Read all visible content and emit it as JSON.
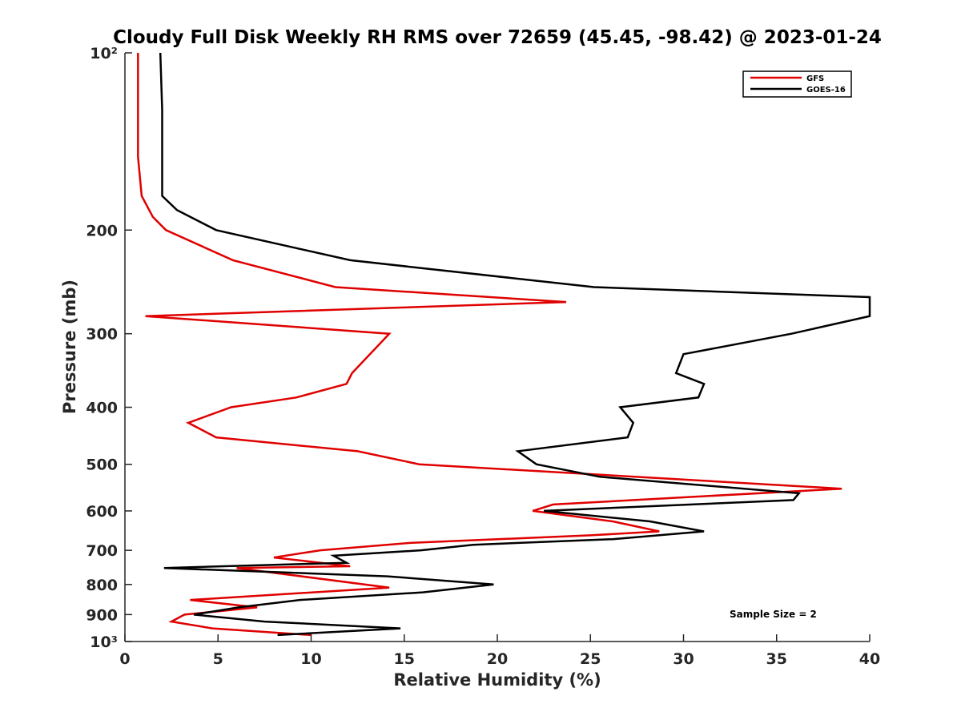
{
  "chart_data": {
    "type": "line",
    "title": "Cloudy Full Disk Weekly RH RMS over 72659 (45.45, -98.42) @ 2023-01-24",
    "xlabel": "Relative Humidity (%)",
    "ylabel": "Pressure (mb)",
    "xlim": [
      0,
      40
    ],
    "ylim": [
      100,
      1000
    ],
    "y_scale": "log",
    "y_reversed": true,
    "grid": false,
    "legend_position": "top-right",
    "x_ticks": [
      "0",
      "5",
      "10",
      "15",
      "20",
      "25",
      "30",
      "35",
      "40"
    ],
    "y_tick_values": [
      100,
      200,
      300,
      400,
      500,
      600,
      700,
      800,
      900,
      1000
    ],
    "y_tick_labels": [
      "10²",
      "200",
      "300",
      "400",
      "500",
      "600",
      "700",
      "800",
      "900",
      "10³"
    ],
    "annotation": "Sample Size = 2",
    "series": [
      {
        "name": "GFS",
        "color": "#e00000",
        "points": [
          [
            0.7,
            100
          ],
          [
            0.7,
            125
          ],
          [
            0.7,
            150
          ],
          [
            0.9,
            175
          ],
          [
            1.5,
            190
          ],
          [
            2.2,
            200
          ],
          [
            5.8,
            225
          ],
          [
            11.3,
            250
          ],
          [
            23.7,
            265
          ],
          [
            1.1,
            280
          ],
          [
            14.2,
            300
          ],
          [
            12.2,
            350
          ],
          [
            11.9,
            365
          ],
          [
            9.2,
            385
          ],
          [
            5.7,
            400
          ],
          [
            3.4,
            425
          ],
          [
            4.9,
            450
          ],
          [
            12.5,
            475
          ],
          [
            15.8,
            500
          ],
          [
            38.5,
            550
          ],
          [
            23.0,
            585
          ],
          [
            21.9,
            600
          ],
          [
            26.2,
            625
          ],
          [
            28.7,
            650
          ],
          [
            25.0,
            660
          ],
          [
            15.3,
            680
          ],
          [
            10.5,
            700
          ],
          [
            8.0,
            720
          ],
          [
            12.1,
            745
          ],
          [
            6.0,
            750
          ],
          [
            14.2,
            810
          ],
          [
            3.5,
            850
          ],
          [
            7.1,
            875
          ],
          [
            3.2,
            900
          ],
          [
            2.5,
            925
          ],
          [
            4.7,
            950
          ],
          [
            10.0,
            975
          ]
        ]
      },
      {
        "name": "GOES-16",
        "color": "#000000",
        "points": [
          [
            1.9,
            100
          ],
          [
            2.0,
            125
          ],
          [
            2.0,
            150
          ],
          [
            2.0,
            175
          ],
          [
            2.8,
            185
          ],
          [
            4.9,
            200
          ],
          [
            12.1,
            225
          ],
          [
            25.2,
            250
          ],
          [
            40.0,
            260
          ],
          [
            40.0,
            280
          ],
          [
            35.8,
            300
          ],
          [
            30.0,
            325
          ],
          [
            29.6,
            350
          ],
          [
            31.1,
            365
          ],
          [
            30.8,
            385
          ],
          [
            26.6,
            400
          ],
          [
            27.3,
            425
          ],
          [
            27.0,
            450
          ],
          [
            21.1,
            475
          ],
          [
            22.1,
            500
          ],
          [
            25.5,
            525
          ],
          [
            36.2,
            560
          ],
          [
            35.9,
            575
          ],
          [
            22.5,
            600
          ],
          [
            28.2,
            625
          ],
          [
            31.1,
            650
          ],
          [
            26.2,
            670
          ],
          [
            18.7,
            685
          ],
          [
            15.9,
            700
          ],
          [
            11.2,
            715
          ],
          [
            11.9,
            735
          ],
          [
            2.1,
            750
          ],
          [
            14.1,
            775
          ],
          [
            19.8,
            800
          ],
          [
            16.0,
            825
          ],
          [
            9.4,
            850
          ],
          [
            6.1,
            875
          ],
          [
            3.7,
            900
          ],
          [
            7.5,
            925
          ],
          [
            14.8,
            950
          ],
          [
            8.2,
            975
          ]
        ]
      }
    ]
  }
}
